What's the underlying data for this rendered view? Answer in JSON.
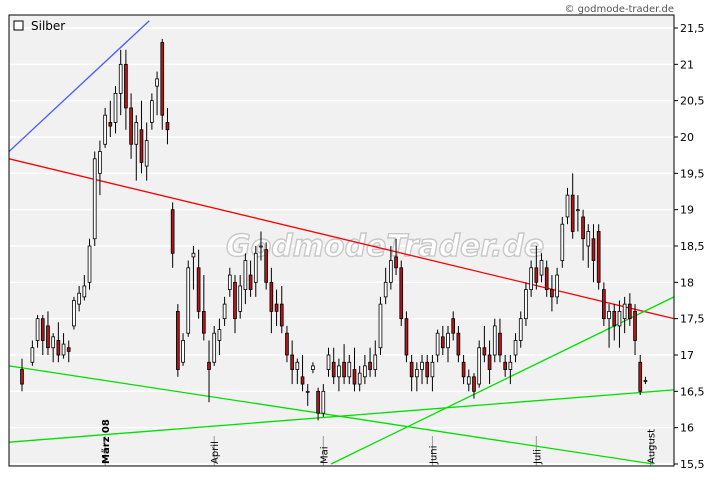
{
  "credit": "© godmode-trader.de",
  "watermark": "GodmodeTrader.de",
  "chart_data": {
    "type": "candlestick",
    "legend": {
      "label": "Silber",
      "placement": "top-left"
    },
    "ylim": [
      15.5,
      21.6
    ],
    "yticks": [
      "21,5",
      "21",
      "20,5",
      "20",
      "19,5",
      "19",
      "18,5",
      "18",
      "17,5",
      "17",
      "16,5",
      "16",
      "15,5"
    ],
    "ytick_values": [
      21.5,
      21,
      20.5,
      20,
      19.5,
      19,
      18.5,
      18,
      17.5,
      17,
      16.5,
      16,
      15.5
    ],
    "xticks": [
      {
        "label": "März 08",
        "bold": true,
        "index": 18
      },
      {
        "label": "April",
        "bold": false,
        "index": 39
      },
      {
        "label": "Mai",
        "bold": false,
        "index": 60
      },
      {
        "label": "Juni",
        "bold": false,
        "index": 81
      },
      {
        "label": "Juli",
        "bold": false,
        "index": 101
      },
      {
        "label": "August",
        "bold": false,
        "index": 123
      }
    ],
    "n_bars": 128,
    "candles": [
      [
        2,
        16.8,
        16.95,
        16.5,
        16.6
      ],
      [
        4,
        16.9,
        17.2,
        16.85,
        17.1
      ],
      [
        5,
        17.2,
        17.55,
        17.1,
        17.5
      ],
      [
        6,
        17.5,
        17.55,
        17.0,
        17.2
      ],
      [
        7,
        17.4,
        17.6,
        17.0,
        17.1
      ],
      [
        8,
        17.1,
        17.3,
        16.9,
        17.25
      ],
      [
        9,
        17.2,
        17.45,
        16.9,
        17.0
      ],
      [
        10,
        17.0,
        17.3,
        16.95,
        17.15
      ],
      [
        11,
        17.1,
        17.2,
        16.9,
        17.05
      ],
      [
        12,
        17.4,
        17.8,
        17.35,
        17.75
      ],
      [
        13,
        17.7,
        17.95,
        17.6,
        17.85
      ],
      [
        14,
        17.8,
        18.1,
        17.75,
        17.95
      ],
      [
        15,
        18.0,
        18.6,
        17.9,
        18.5
      ],
      [
        16,
        18.6,
        19.8,
        18.5,
        19.7
      ],
      [
        17,
        19.5,
        19.95,
        19.2,
        19.8
      ],
      [
        18,
        19.9,
        20.4,
        19.85,
        20.3
      ],
      [
        19,
        20.2,
        20.5,
        20.0,
        20.15
      ],
      [
        20,
        20.2,
        20.7,
        20.05,
        20.6
      ],
      [
        21,
        20.6,
        21.2,
        20.3,
        21.0
      ],
      [
        22,
        21.0,
        21.2,
        20.1,
        20.4
      ],
      [
        23,
        20.4,
        20.6,
        19.7,
        19.9
      ],
      [
        24,
        19.9,
        20.3,
        19.4,
        20.2
      ],
      [
        25,
        20.1,
        20.5,
        19.5,
        19.65
      ],
      [
        26,
        19.6,
        20.2,
        19.4,
        19.95
      ],
      [
        27,
        20.2,
        20.6,
        20.1,
        20.5
      ],
      [
        28,
        20.7,
        20.9,
        20.3,
        20.8
      ],
      [
        29,
        21.3,
        21.35,
        20.1,
        20.3
      ],
      [
        30,
        20.2,
        20.4,
        19.9,
        20.1
      ],
      [
        31,
        19.0,
        19.1,
        18.2,
        18.4
      ],
      [
        32,
        17.6,
        17.7,
        16.7,
        16.8
      ],
      [
        33,
        16.9,
        17.3,
        16.85,
        17.2
      ],
      [
        34,
        17.3,
        18.3,
        17.25,
        18.2
      ],
      [
        35,
        18.35,
        18.5,
        17.9,
        18.4
      ],
      [
        36,
        18.2,
        18.45,
        17.5,
        17.6
      ],
      [
        37,
        17.6,
        18.1,
        17.2,
        17.3
      ],
      [
        38,
        16.9,
        17.2,
        16.35,
        16.8
      ],
      [
        39,
        16.9,
        17.4,
        16.85,
        17.3
      ],
      [
        40,
        17.2,
        17.5,
        17.0,
        17.35
      ],
      [
        41,
        17.5,
        17.8,
        17.4,
        17.7
      ],
      [
        42,
        17.9,
        18.2,
        17.8,
        18.1
      ],
      [
        43,
        18.0,
        18.1,
        17.3,
        17.5
      ],
      [
        44,
        17.6,
        18.1,
        17.5,
        17.95
      ],
      [
        45,
        17.9,
        18.4,
        17.7,
        18.3
      ],
      [
        46,
        18.1,
        18.3,
        17.8,
        17.9
      ],
      [
        47,
        18.0,
        18.5,
        17.8,
        18.4
      ],
      [
        48,
        18.5,
        18.7,
        18.3,
        18.5
      ],
      [
        49,
        18.45,
        18.55,
        17.9,
        18.0
      ],
      [
        50,
        18.0,
        18.2,
        17.3,
        17.6
      ],
      [
        51,
        17.7,
        17.9,
        17.4,
        17.6
      ],
      [
        52,
        17.7,
        17.95,
        17.3,
        17.4
      ],
      [
        53,
        17.3,
        17.4,
        16.9,
        17.0
      ],
      [
        54,
        17.0,
        17.2,
        16.6,
        16.8
      ],
      [
        55,
        16.8,
        16.95,
        16.6,
        16.9
      ],
      [
        56,
        16.7,
        17.0,
        16.5,
        16.6
      ],
      [
        57,
        16.5,
        16.6,
        16.3,
        16.5
      ],
      [
        58,
        16.8,
        16.9,
        16.75,
        16.85
      ],
      [
        59,
        16.5,
        16.55,
        16.1,
        16.2
      ],
      [
        60,
        16.2,
        16.6,
        16.15,
        16.5
      ],
      [
        61,
        16.8,
        17.1,
        16.7,
        17.0
      ],
      [
        62,
        16.9,
        17.1,
        16.6,
        16.7
      ],
      [
        63,
        16.7,
        16.95,
        16.5,
        16.85
      ],
      [
        64,
        16.9,
        17.15,
        16.6,
        16.7
      ],
      [
        65,
        16.7,
        17.0,
        16.6,
        16.9
      ],
      [
        66,
        16.8,
        17.1,
        16.5,
        16.6
      ],
      [
        67,
        16.6,
        16.85,
        16.5,
        16.75
      ],
      [
        68,
        16.7,
        17.0,
        16.6,
        16.85
      ],
      [
        69,
        16.9,
        17.1,
        16.7,
        16.8
      ],
      [
        70,
        16.8,
        17.2,
        16.7,
        17.0
      ],
      [
        71,
        17.1,
        17.8,
        17.0,
        17.7
      ],
      [
        72,
        17.8,
        18.2,
        17.7,
        18.0
      ],
      [
        73,
        18.0,
        18.5,
        17.9,
        18.3
      ],
      [
        74,
        18.35,
        18.6,
        18.1,
        18.2
      ],
      [
        75,
        18.2,
        18.3,
        17.4,
        17.5
      ],
      [
        76,
        17.5,
        17.6,
        16.9,
        17.0
      ],
      [
        77,
        16.9,
        17.0,
        16.5,
        16.7
      ],
      [
        78,
        16.7,
        16.9,
        16.5,
        16.8
      ],
      [
        79,
        16.8,
        17.0,
        16.6,
        16.9
      ],
      [
        80,
        16.9,
        17.0,
        16.6,
        16.7
      ],
      [
        81,
        16.7,
        17.0,
        16.5,
        16.9
      ],
      [
        82,
        17.0,
        17.35,
        16.9,
        17.3
      ],
      [
        83,
        17.25,
        17.4,
        17.0,
        17.1
      ],
      [
        84,
        17.1,
        17.4,
        16.9,
        17.3
      ],
      [
        85,
        17.5,
        17.6,
        17.2,
        17.3
      ],
      [
        86,
        17.3,
        17.4,
        16.9,
        17.0
      ],
      [
        87,
        16.9,
        17.0,
        16.6,
        16.7
      ],
      [
        88,
        16.6,
        16.8,
        16.5,
        16.7
      ],
      [
        89,
        16.7,
        16.75,
        16.4,
        16.5
      ],
      [
        90,
        16.6,
        17.2,
        16.55,
        17.1
      ],
      [
        91,
        17.1,
        17.4,
        16.9,
        17.0
      ],
      [
        92,
        17.0,
        17.2,
        16.6,
        16.8
      ],
      [
        93,
        17.0,
        17.5,
        16.9,
        17.4
      ],
      [
        94,
        17.3,
        17.5,
        16.9,
        17.0
      ],
      [
        95,
        16.9,
        17.0,
        16.7,
        16.8
      ],
      [
        96,
        16.8,
        17.0,
        16.6,
        16.9
      ],
      [
        97,
        17.0,
        17.3,
        16.9,
        17.2
      ],
      [
        98,
        17.2,
        17.6,
        17.1,
        17.5
      ],
      [
        99,
        17.5,
        18.0,
        17.4,
        17.9
      ],
      [
        100,
        17.9,
        18.3,
        17.8,
        18.2
      ],
      [
        101,
        18.2,
        18.5,
        17.9,
        18.0
      ],
      [
        102,
        18.1,
        18.4,
        18.0,
        18.3
      ],
      [
        103,
        18.2,
        18.3,
        17.8,
        17.9
      ],
      [
        104,
        17.9,
        18.1,
        17.6,
        17.8
      ],
      [
        105,
        17.8,
        18.2,
        17.7,
        18.1
      ],
      [
        106,
        18.3,
        18.9,
        18.2,
        18.8
      ],
      [
        107,
        18.9,
        19.3,
        18.8,
        19.2
      ],
      [
        108,
        19.2,
        19.5,
        18.6,
        18.7
      ],
      [
        109,
        19.0,
        19.2,
        18.7,
        19.0
      ],
      [
        110,
        18.9,
        19.0,
        18.3,
        18.6
      ],
      [
        111,
        18.5,
        18.8,
        18.2,
        18.7
      ],
      [
        112,
        18.6,
        18.8,
        18.0,
        18.3
      ],
      [
        113,
        18.7,
        18.8,
        17.9,
        18.0
      ],
      [
        114,
        17.9,
        18.0,
        17.4,
        17.5
      ],
      [
        115,
        17.5,
        17.7,
        17.1,
        17.6
      ],
      [
        116,
        17.6,
        17.7,
        17.2,
        17.4
      ],
      [
        117,
        17.4,
        17.75,
        17.1,
        17.6
      ],
      [
        118,
        17.5,
        17.8,
        17.3,
        17.7
      ],
      [
        119,
        17.7,
        17.85,
        17.4,
        17.5
      ],
      [
        120,
        17.6,
        17.7,
        17.0,
        17.2
      ],
      [
        121,
        16.9,
        17.0,
        16.45,
        16.5
      ],
      [
        122,
        16.65,
        16.7,
        16.6,
        16.65
      ]
    ],
    "trendlines": [
      {
        "color": "#ff0000",
        "from": [
          0,
          19.7
        ],
        "to": [
          128,
          17.5
        ]
      },
      {
        "color": "#4a5cff",
        "from": [
          0,
          19.8
        ],
        "to": [
          27,
          21.6
        ]
      },
      {
        "color": "#00e000",
        "from": [
          0,
          16.85
        ],
        "to": [
          124,
          15.5
        ]
      },
      {
        "color": "#00e000",
        "from": [
          0,
          15.8
        ],
        "to": [
          128,
          16.52
        ]
      },
      {
        "color": "#00e000",
        "from": [
          62,
          15.5
        ],
        "to": [
          128,
          17.8
        ]
      }
    ],
    "colors": {
      "up": "#ffffff",
      "down": "#b01818",
      "background": "#f1f1f1",
      "grid": "#ffffff"
    }
  }
}
